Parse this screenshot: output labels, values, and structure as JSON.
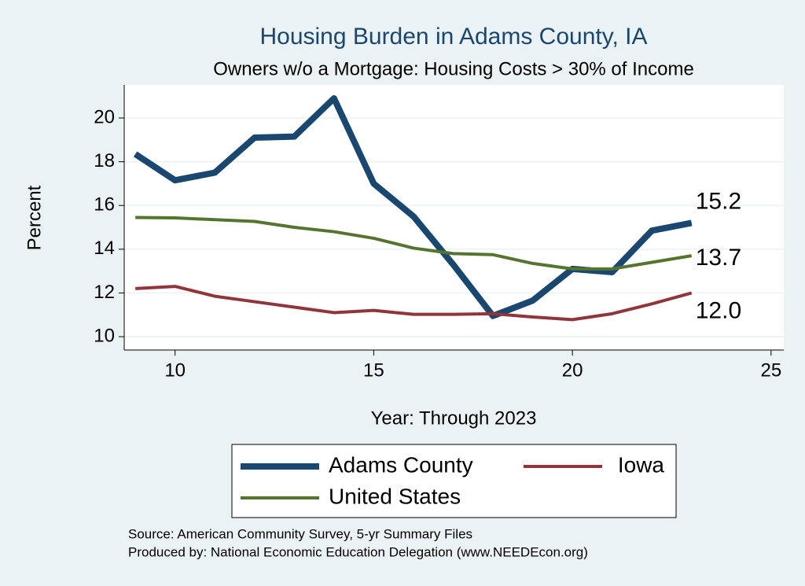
{
  "chart_data": {
    "type": "line",
    "title": "Housing Burden in Adams County, IA",
    "subtitle": "Owners w/o a Mortgage: Housing Costs > 30% of Income",
    "x_label": "Year: Through 2023",
    "y_label": "Percent",
    "notes": [
      "Source: American Community Survey, 5-yr Summary Files",
      "Produced by: National Economic Education Delegation (www.NEEDEcon.org)"
    ],
    "x": [
      9,
      10,
      11,
      12,
      13,
      14,
      15,
      16,
      17,
      18,
      19,
      20,
      21,
      22,
      23
    ],
    "series": [
      {
        "name": "Adams County",
        "color": "#1a476f",
        "width": 8,
        "values": [
          18.35,
          17.15,
          17.5,
          19.1,
          19.15,
          20.9,
          17.0,
          15.5,
          13.3,
          10.95,
          11.65,
          13.1,
          12.95,
          14.85,
          15.2
        ],
        "value_labels": [
          null,
          null,
          null,
          null,
          null,
          null,
          null,
          null,
          null,
          null,
          null,
          null,
          null,
          null,
          "15.2"
        ]
      },
      {
        "name": "Iowa",
        "color": "#90353b",
        "width": 4,
        "values": [
          12.2,
          12.3,
          11.85,
          11.6,
          11.35,
          11.1,
          11.2,
          11.02,
          11.02,
          11.05,
          10.9,
          10.78,
          11.05,
          11.5,
          12.0
        ],
        "value_labels": [
          null,
          null,
          null,
          null,
          null,
          null,
          null,
          null,
          null,
          null,
          null,
          null,
          null,
          null,
          "12.0"
        ]
      },
      {
        "name": "United States",
        "color": "#55752f",
        "width": 4,
        "values": [
          15.45,
          15.43,
          15.35,
          15.27,
          15.0,
          14.8,
          14.5,
          14.05,
          13.8,
          13.75,
          13.35,
          13.1,
          13.1,
          13.4,
          13.7
        ],
        "value_labels": [
          null,
          null,
          null,
          null,
          null,
          null,
          null,
          null,
          null,
          null,
          null,
          null,
          null,
          null,
          "13.7"
        ]
      }
    ],
    "xlim": [
      8.72,
      25.32
    ],
    "xticks": [
      10,
      15,
      20,
      25
    ],
    "ylim": [
      9.39,
      21.51
    ],
    "yticks": [
      10,
      12,
      14,
      16,
      18,
      20
    ],
    "grid": true
  }
}
